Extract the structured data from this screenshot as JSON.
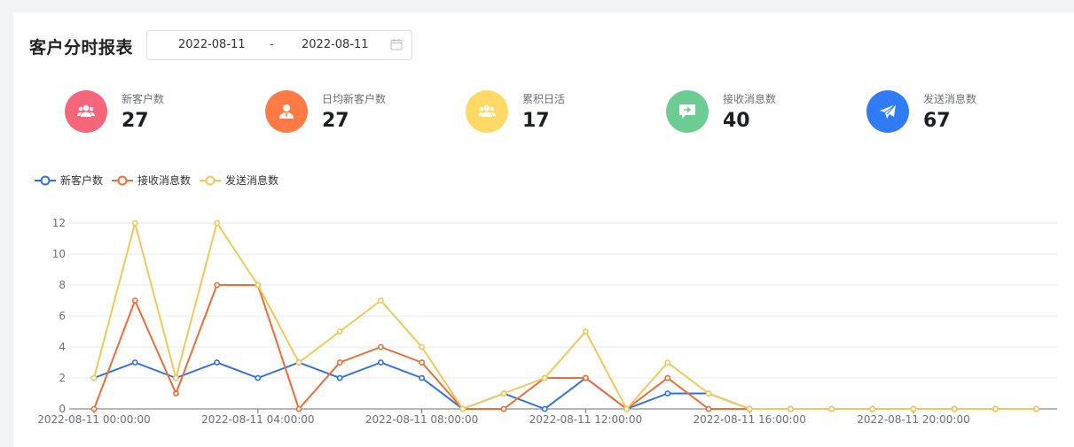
{
  "header": {
    "title": "客户分时报表",
    "date_start": "2022-08-11",
    "date_separator": "-",
    "date_end": "2022-08-11"
  },
  "stats": [
    {
      "label": "新客户数",
      "value": "27",
      "color": "#f5667a",
      "icon": "users-icon"
    },
    {
      "label": "日均新客户数",
      "value": "27",
      "color": "#ff7a45",
      "icon": "user-icon"
    },
    {
      "label": "累积日活",
      "value": "17",
      "color": "#ffd966",
      "icon": "users-icon"
    },
    {
      "label": "接收消息数",
      "value": "40",
      "color": "#6ccc94",
      "icon": "message-icon"
    },
    {
      "label": "发送消息数",
      "value": "67",
      "color": "#2f7cf6",
      "icon": "send-icon"
    }
  ],
  "chart_data": {
    "type": "line",
    "x": [
      "00:00",
      "01:00",
      "02:00",
      "03:00",
      "04:00",
      "05:00",
      "06:00",
      "07:00",
      "08:00",
      "09:00",
      "10:00",
      "11:00",
      "12:00",
      "13:00",
      "14:00",
      "15:00",
      "16:00",
      "17:00",
      "18:00",
      "19:00",
      "20:00",
      "21:00",
      "22:00",
      "23:00"
    ],
    "x_tick_labels": [
      "2022-08-11 00:00:00",
      "2022-08-11 04:00:00",
      "2022-08-11 08:00:00",
      "2022-08-11 12:00:00",
      "2022-08-11 16:00:00",
      "2022-08-11 20:00:00"
    ],
    "y_ticks": [
      0,
      2,
      4,
      6,
      8,
      10,
      12
    ],
    "ylim": [
      0,
      12
    ],
    "grid": true,
    "legend_position": "top-left",
    "series": [
      {
        "name": "新客户数",
        "color": "#2f6fe6",
        "values": [
          2,
          3,
          2,
          3,
          2,
          3,
          2,
          3,
          2,
          0,
          1,
          0,
          2,
          0,
          1,
          1,
          0,
          0,
          0,
          0,
          0,
          0,
          0,
          0
        ]
      },
      {
        "name": "接收消息数",
        "color": "#ef6c35",
        "values": [
          0,
          7,
          1,
          8,
          8,
          0,
          3,
          4,
          3,
          0,
          0,
          2,
          2,
          0,
          2,
          0,
          0,
          0,
          0,
          0,
          0,
          0,
          0,
          0
        ]
      },
      {
        "name": "发送消息数",
        "color": "#f3c85a",
        "values": [
          2,
          12,
          2,
          12,
          8,
          3,
          5,
          7,
          4,
          0,
          1,
          2,
          5,
          0,
          3,
          1,
          0,
          0,
          0,
          0,
          0,
          0,
          0,
          0
        ]
      }
    ]
  }
}
